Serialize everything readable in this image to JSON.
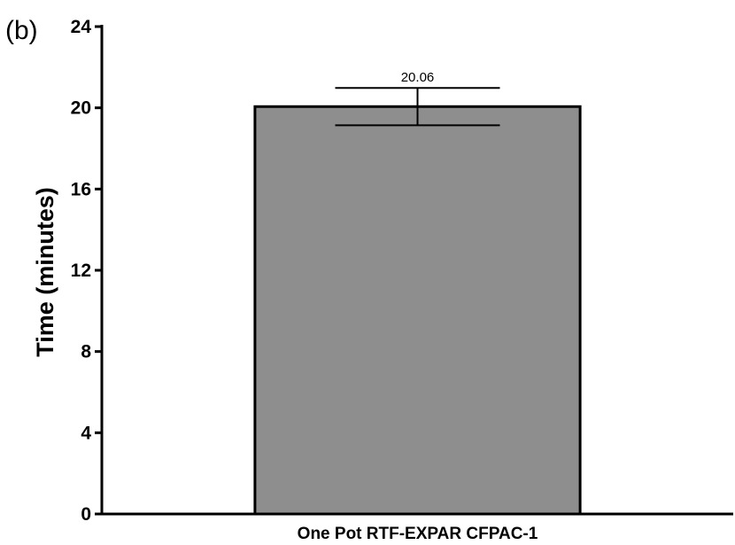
{
  "panel_label": "(b)",
  "chart_data": {
    "type": "bar",
    "title": "",
    "xlabel": "",
    "ylabel": "Time (minutes)",
    "categories": [
      "One Pot RTF-EXPAR CFPAC-1"
    ],
    "values": [
      20.06
    ],
    "error_high": [
      20.98
    ],
    "error_low": [
      19.14
    ],
    "data_labels": [
      "20.06"
    ],
    "ylim": [
      0,
      24
    ],
    "yticks": [
      0,
      4,
      8,
      12,
      16,
      20,
      24
    ],
    "ytick_labels": [
      "0",
      "4",
      "8",
      "12",
      "16",
      "20",
      "24"
    ],
    "grid": false,
    "legend": "none",
    "colors": {
      "bar_fill": "#8e8e8e",
      "bar_stroke": "#000000",
      "axis": "#000000"
    }
  }
}
